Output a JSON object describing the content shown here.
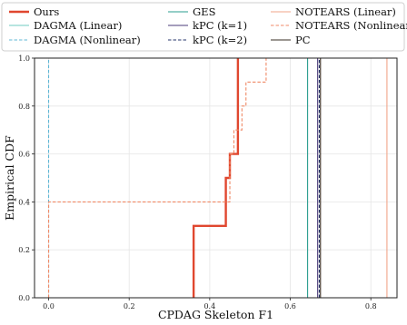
{
  "chart_data": {
    "type": "line",
    "title": "",
    "xlabel": "CPDAG Skeleton F1",
    "ylabel": "Empirical CDF",
    "xlim": [
      -0.035,
      0.865
    ],
    "ylim": [
      0.0,
      1.0
    ],
    "grid": true,
    "legend_placement": "top (outside plot, 3 columns)",
    "x_ticks": [
      "0.0",
      "0.2",
      "0.4",
      "0.6",
      "0.8"
    ],
    "x_tick_values": [
      0.0,
      0.2,
      0.4,
      0.6,
      0.8
    ],
    "y_ticks": [
      "0.0",
      "0.2",
      "0.4",
      "0.6",
      "0.8",
      "1.0"
    ],
    "y_tick_values": [
      0.0,
      0.2,
      0.4,
      0.6,
      0.8,
      1.0
    ],
    "series": [
      {
        "name": "Ours",
        "color": "#e0472f",
        "style": "solid",
        "width": "thick",
        "x": [
          0.36,
          0.36,
          0.44,
          0.44,
          0.45,
          0.45,
          0.47,
          0.47
        ],
        "y": [
          0.0,
          0.3,
          0.3,
          0.5,
          0.5,
          0.6,
          0.6,
          1.0
        ]
      },
      {
        "name": "DAGMA (Linear)",
        "color": "#6fcbc2",
        "style": "solid",
        "width": "thin",
        "x": [],
        "y": []
      },
      {
        "name": "DAGMA (Nonlinear)",
        "color": "#5fb7d6",
        "style": "dashed",
        "width": "thin",
        "x": [
          0.0,
          0.0
        ],
        "y": [
          0.0,
          1.0
        ]
      },
      {
        "name": "GES",
        "color": "#2a9d8f",
        "style": "solid",
        "width": "thin",
        "x": [
          0.643,
          0.643
        ],
        "y": [
          0.0,
          1.0
        ]
      },
      {
        "name": "kPC (k=1)",
        "color": "#4b3b7a",
        "style": "solid",
        "width": "thin",
        "x": [
          0.668,
          0.668
        ],
        "y": [
          0.0,
          1.0
        ]
      },
      {
        "name": "kPC (k=2)",
        "color": "#26366b",
        "style": "dashed",
        "width": "thin",
        "x": [
          0.672,
          0.672
        ],
        "y": [
          0.0,
          1.0
        ]
      },
      {
        "name": "NOTEARS (Linear)",
        "color": "#f2a58a",
        "style": "solid",
        "width": "thin",
        "x": [
          0.84,
          0.84
        ],
        "y": [
          0.0,
          1.0
        ]
      },
      {
        "name": "NOTEARS (Nonlinear)",
        "color": "#f08a67",
        "style": "dashed",
        "width": "thin",
        "x": [
          0.0,
          0.0,
          0.45,
          0.45,
          0.46,
          0.46,
          0.48,
          0.48,
          0.49,
          0.49,
          0.5,
          0.5,
          0.54,
          0.54
        ],
        "y": [
          0.0,
          0.4,
          0.4,
          0.6,
          0.6,
          0.7,
          0.7,
          0.8,
          0.8,
          0.9,
          0.9,
          0.9,
          0.9,
          1.0
        ]
      },
      {
        "name": "PC",
        "color": "#3a2f25",
        "style": "solid",
        "width": "thin",
        "x": [
          0.675,
          0.675
        ],
        "y": [
          0.0,
          1.0
        ]
      }
    ]
  }
}
